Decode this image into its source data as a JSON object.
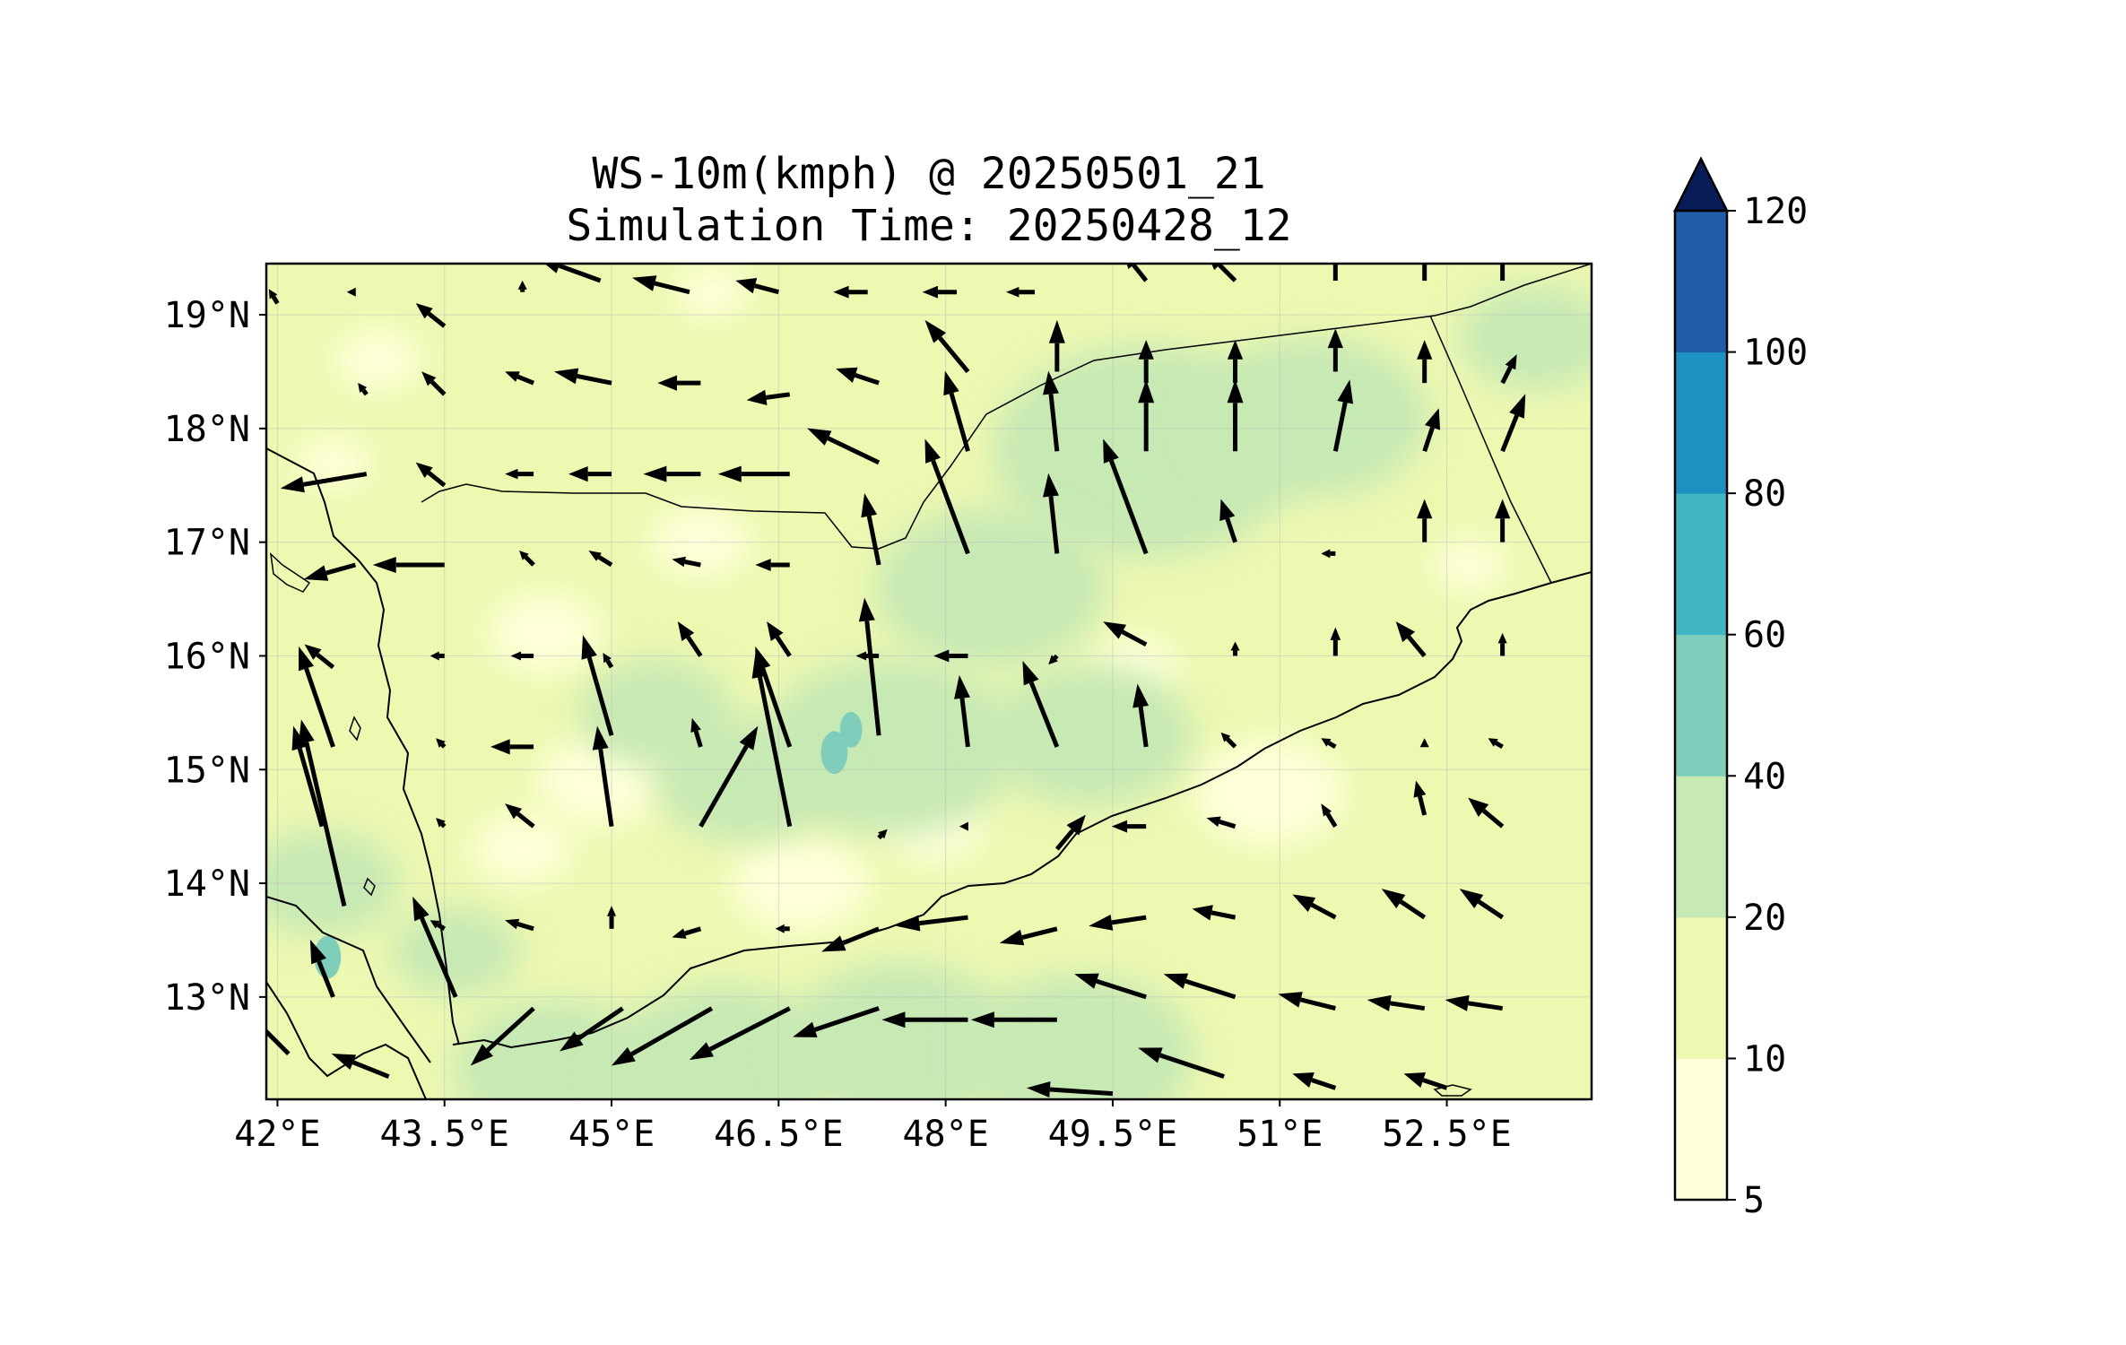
{
  "figure": {
    "title_line1": "WS-10m(kmph) @ 20250501_21",
    "title_line2": "Simulation Time: 20250428_12"
  },
  "map": {
    "lon_range": [
      41.9,
      53.8
    ],
    "lat_range": [
      12.1,
      19.45
    ],
    "lon_ticks": [
      {
        "value": 42.0,
        "label": "42°E"
      },
      {
        "value": 43.5,
        "label": "43.5°E"
      },
      {
        "value": 45.0,
        "label": "45°E"
      },
      {
        "value": 46.5,
        "label": "46.5°E"
      },
      {
        "value": 48.0,
        "label": "48°E"
      },
      {
        "value": 49.5,
        "label": "49.5°E"
      },
      {
        "value": 51.0,
        "label": "51°E"
      },
      {
        "value": 52.5,
        "label": "52.5°E"
      }
    ],
    "lat_ticks": [
      {
        "value": 19.0,
        "label": "19°N"
      },
      {
        "value": 18.0,
        "label": "18°N"
      },
      {
        "value": 17.0,
        "label": "17°N"
      },
      {
        "value": 16.0,
        "label": "16°N"
      },
      {
        "value": 15.0,
        "label": "15°N"
      },
      {
        "value": 14.0,
        "label": "14°N"
      },
      {
        "value": 13.0,
        "label": "13°N"
      }
    ],
    "gridlines": true,
    "vector_color": "#000000",
    "coast_color": "#000000"
  },
  "colorbar": {
    "levels": [
      5,
      10,
      20,
      40,
      60,
      80,
      100,
      120
    ],
    "tick_labels": [
      "5",
      "10",
      "20",
      "40",
      "60",
      "80",
      "100",
      "120"
    ],
    "colors": [
      "#ffffd9",
      "#edf8b1",
      "#c7e9b4",
      "#7fcdbb",
      "#41b6c4",
      "#1d91c0",
      "#225ea8",
      "#253494"
    ],
    "extend_color": "#081d58",
    "extend": "max",
    "orientation": "vertical"
  },
  "wind_field": {
    "units": "kmph",
    "base_color": "#edf8b1",
    "calm_areas": [
      {
        "lon": 42.9,
        "lat": 18.6,
        "r": 0.35
      },
      {
        "lon": 42.5,
        "lat": 17.7,
        "r": 0.3
      },
      {
        "lon": 44.4,
        "lat": 16.2,
        "r": 0.45
      },
      {
        "lon": 44.9,
        "lat": 14.9,
        "r": 0.5
      },
      {
        "lon": 44.2,
        "lat": 14.3,
        "r": 0.4
      },
      {
        "lon": 46.7,
        "lat": 14.0,
        "r": 0.55
      },
      {
        "lon": 47.9,
        "lat": 14.5,
        "r": 0.4
      },
      {
        "lon": 50.9,
        "lat": 14.8,
        "r": 0.6
      },
      {
        "lon": 49.7,
        "lat": 15.9,
        "r": 0.35
      },
      {
        "lon": 45.8,
        "lat": 17.0,
        "r": 0.4
      },
      {
        "lon": 52.7,
        "lat": 16.8,
        "r": 0.3
      },
      {
        "lon": 45.9,
        "lat": 19.2,
        "r": 0.3
      }
    ],
    "moderate_areas": [
      {
        "lon": 49.8,
        "lat": 17.8,
        "r": 1.2
      },
      {
        "lon": 51.3,
        "lat": 18.1,
        "r": 0.9
      },
      {
        "lon": 48.4,
        "lat": 16.6,
        "r": 0.9
      },
      {
        "lon": 47.5,
        "lat": 15.2,
        "r": 1.0
      },
      {
        "lon": 46.2,
        "lat": 14.9,
        "r": 0.7
      },
      {
        "lon": 45.4,
        "lat": 15.5,
        "r": 0.6
      },
      {
        "lon": 49.3,
        "lat": 15.3,
        "r": 0.8
      },
      {
        "lon": 42.4,
        "lat": 14.0,
        "r": 0.6
      },
      {
        "lon": 43.6,
        "lat": 13.4,
        "r": 0.5
      },
      {
        "lon": 44.5,
        "lat": 12.35,
        "r": 0.8
      },
      {
        "lon": 46.0,
        "lat": 12.4,
        "r": 0.9
      },
      {
        "lon": 47.6,
        "lat": 12.6,
        "r": 0.9
      },
      {
        "lon": 49.2,
        "lat": 12.5,
        "r": 0.9
      },
      {
        "lon": 53.3,
        "lat": 18.8,
        "r": 0.6
      }
    ],
    "strong_areas": [
      {
        "lon": 47.0,
        "lat": 15.15,
        "r": 0.12
      },
      {
        "lon": 47.15,
        "lat": 15.35,
        "r": 0.1
      },
      {
        "lon": 42.45,
        "lat": 13.35,
        "r": 0.12
      }
    ],
    "vectors": [
      {
        "lon": 42.0,
        "lat": 19.1,
        "u": -3,
        "v": 5
      },
      {
        "lon": 42.7,
        "lat": 19.2,
        "u": -3,
        "v": 0
      },
      {
        "lon": 43.5,
        "lat": 18.9,
        "u": -10,
        "v": 8
      },
      {
        "lon": 44.2,
        "lat": 19.2,
        "u": 0,
        "v": 4
      },
      {
        "lon": 44.9,
        "lat": 19.3,
        "u": -22,
        "v": 8
      },
      {
        "lon": 45.7,
        "lat": 19.2,
        "u": -20,
        "v": 5
      },
      {
        "lon": 46.5,
        "lat": 19.2,
        "u": -15,
        "v": 4
      },
      {
        "lon": 47.3,
        "lat": 19.2,
        "u": -12,
        "v": 0
      },
      {
        "lon": 48.1,
        "lat": 19.2,
        "u": -12,
        "v": 0
      },
      {
        "lon": 48.8,
        "lat": 19.2,
        "u": -10,
        "v": 0
      },
      {
        "lon": 49.8,
        "lat": 19.3,
        "u": -8,
        "v": 10
      },
      {
        "lon": 50.6,
        "lat": 19.3,
        "u": -10,
        "v": 10
      },
      {
        "lon": 51.5,
        "lat": 19.3,
        "u": 0,
        "v": 12
      },
      {
        "lon": 52.3,
        "lat": 19.3,
        "u": 0,
        "v": 12
      },
      {
        "lon": 53.0,
        "lat": 19.3,
        "u": 0,
        "v": 12
      },
      {
        "lon": 42.8,
        "lat": 18.3,
        "u": -3,
        "v": 4
      },
      {
        "lon": 43.5,
        "lat": 18.3,
        "u": -8,
        "v": 8
      },
      {
        "lon": 44.3,
        "lat": 18.4,
        "u": -10,
        "v": 4
      },
      {
        "lon": 45.0,
        "lat": 18.4,
        "u": -20,
        "v": 4
      },
      {
        "lon": 45.8,
        "lat": 18.4,
        "u": -15,
        "v": 0
      },
      {
        "lon": 46.6,
        "lat": 18.3,
        "u": -15,
        "v": -2
      },
      {
        "lon": 47.4,
        "lat": 18.4,
        "u": -15,
        "v": 5
      },
      {
        "lon": 48.2,
        "lat": 18.5,
        "u": -15,
        "v": 18
      },
      {
        "lon": 49.0,
        "lat": 18.5,
        "u": 0,
        "v": 18
      },
      {
        "lon": 49.8,
        "lat": 18.4,
        "u": 0,
        "v": 15
      },
      {
        "lon": 50.6,
        "lat": 18.4,
        "u": 0,
        "v": 15
      },
      {
        "lon": 51.5,
        "lat": 18.5,
        "u": 0,
        "v": 15
      },
      {
        "lon": 52.3,
        "lat": 18.4,
        "u": 0,
        "v": 15
      },
      {
        "lon": 53.0,
        "lat": 18.4,
        "u": 5,
        "v": 10
      },
      {
        "lon": 42.8,
        "lat": 17.6,
        "u": -30,
        "v": -5
      },
      {
        "lon": 43.5,
        "lat": 17.5,
        "u": -10,
        "v": 8
      },
      {
        "lon": 44.3,
        "lat": 17.6,
        "u": -10,
        "v": 0
      },
      {
        "lon": 45.0,
        "lat": 17.6,
        "u": -15,
        "v": 0
      },
      {
        "lon": 45.8,
        "lat": 17.6,
        "u": -20,
        "v": 0
      },
      {
        "lon": 46.6,
        "lat": 17.6,
        "u": -25,
        "v": 0
      },
      {
        "lon": 47.4,
        "lat": 17.7,
        "u": -25,
        "v": 12
      },
      {
        "lon": 48.2,
        "lat": 17.8,
        "u": -8,
        "v": 28
      },
      {
        "lon": 49.0,
        "lat": 17.8,
        "u": -3,
        "v": 28
      },
      {
        "lon": 49.8,
        "lat": 17.8,
        "u": 0,
        "v": 25
      },
      {
        "lon": 50.6,
        "lat": 17.8,
        "u": 0,
        "v": 25
      },
      {
        "lon": 51.5,
        "lat": 17.8,
        "u": 5,
        "v": 25
      },
      {
        "lon": 52.3,
        "lat": 17.8,
        "u": 5,
        "v": 15
      },
      {
        "lon": 53.0,
        "lat": 17.8,
        "u": 8,
        "v": 20
      },
      {
        "lon": 42.7,
        "lat": 16.8,
        "u": -18,
        "v": -5
      },
      {
        "lon": 43.5,
        "lat": 16.8,
        "u": -25,
        "v": 0
      },
      {
        "lon": 44.3,
        "lat": 16.8,
        "u": -5,
        "v": 5
      },
      {
        "lon": 45.0,
        "lat": 16.8,
        "u": -8,
        "v": 5
      },
      {
        "lon": 45.8,
        "lat": 16.8,
        "u": -10,
        "v": 2
      },
      {
        "lon": 46.6,
        "lat": 16.8,
        "u": -12,
        "v": 0
      },
      {
        "lon": 47.4,
        "lat": 16.8,
        "u": -5,
        "v": 25
      },
      {
        "lon": 48.2,
        "lat": 16.9,
        "u": -15,
        "v": 40
      },
      {
        "lon": 49.0,
        "lat": 16.9,
        "u": -3,
        "v": 28
      },
      {
        "lon": 49.8,
        "lat": 16.9,
        "u": -15,
        "v": 40
      },
      {
        "lon": 50.6,
        "lat": 17.0,
        "u": -5,
        "v": 15
      },
      {
        "lon": 51.5,
        "lat": 16.9,
        "u": -5,
        "v": 0
      },
      {
        "lon": 52.3,
        "lat": 17.0,
        "u": 0,
        "v": 15
      },
      {
        "lon": 53.0,
        "lat": 17.0,
        "u": 0,
        "v": 15
      },
      {
        "lon": 42.5,
        "lat": 15.9,
        "u": -10,
        "v": 8
      },
      {
        "lon": 43.5,
        "lat": 16.0,
        "u": -5,
        "v": 0
      },
      {
        "lon": 44.3,
        "lat": 16.0,
        "u": -8,
        "v": 0
      },
      {
        "lon": 45.0,
        "lat": 15.9,
        "u": -3,
        "v": 5
      },
      {
        "lon": 45.8,
        "lat": 16.0,
        "u": -8,
        "v": 12
      },
      {
        "lon": 46.6,
        "lat": 16.0,
        "u": -8,
        "v": 12
      },
      {
        "lon": 47.4,
        "lat": 16.0,
        "u": -8,
        "v": 0
      },
      {
        "lon": 48.2,
        "lat": 16.0,
        "u": -12,
        "v": 0
      },
      {
        "lon": 49.0,
        "lat": 16.0,
        "u": -3,
        "v": -3
      },
      {
        "lon": 49.8,
        "lat": 16.1,
        "u": -15,
        "v": 8
      },
      {
        "lon": 50.6,
        "lat": 16.0,
        "u": 0,
        "v": 5
      },
      {
        "lon": 51.5,
        "lat": 16.0,
        "u": 0,
        "v": 10
      },
      {
        "lon": 52.3,
        "lat": 16.0,
        "u": -10,
        "v": 12
      },
      {
        "lon": 53.0,
        "lat": 16.0,
        "u": 0,
        "v": 8
      },
      {
        "lon": 42.5,
        "lat": 15.2,
        "u": -12,
        "v": 35
      },
      {
        "lon": 43.5,
        "lat": 15.2,
        "u": -3,
        "v": 3
      },
      {
        "lon": 44.3,
        "lat": 15.2,
        "u": -15,
        "v": 0
      },
      {
        "lon": 45.0,
        "lat": 15.3,
        "u": -10,
        "v": 35
      },
      {
        "lon": 45.8,
        "lat": 15.2,
        "u": -3,
        "v": 10
      },
      {
        "lon": 46.6,
        "lat": 15.2,
        "u": -12,
        "v": 35
      },
      {
        "lon": 47.4,
        "lat": 15.3,
        "u": -5,
        "v": 48
      },
      {
        "lon": 48.2,
        "lat": 15.2,
        "u": -3,
        "v": 25
      },
      {
        "lon": 49.0,
        "lat": 15.2,
        "u": -12,
        "v": 30
      },
      {
        "lon": 49.8,
        "lat": 15.2,
        "u": -3,
        "v": 22
      },
      {
        "lon": 50.6,
        "lat": 15.2,
        "u": -5,
        "v": 5
      },
      {
        "lon": 51.5,
        "lat": 15.2,
        "u": -5,
        "v": 3
      },
      {
        "lon": 52.3,
        "lat": 15.2,
        "u": 0,
        "v": 3
      },
      {
        "lon": 53.0,
        "lat": 15.2,
        "u": -5,
        "v": 3
      },
      {
        "lon": 42.4,
        "lat": 14.5,
        "u": -10,
        "v": 35
      },
      {
        "lon": 43.5,
        "lat": 14.5,
        "u": -3,
        "v": 3
      },
      {
        "lon": 44.3,
        "lat": 14.5,
        "u": -10,
        "v": 8
      },
      {
        "lon": 45.0,
        "lat": 14.5,
        "u": -5,
        "v": 35
      },
      {
        "lon": 45.8,
        "lat": 14.5,
        "u": 20,
        "v": 35
      },
      {
        "lon": 46.6,
        "lat": 14.5,
        "u": -12,
        "v": 60
      },
      {
        "lon": 47.4,
        "lat": 14.4,
        "u": 3,
        "v": 3
      },
      {
        "lon": 48.2,
        "lat": 14.5,
        "u": -3,
        "v": 0
      },
      {
        "lon": 49.0,
        "lat": 14.3,
        "u": 10,
        "v": 12
      },
      {
        "lon": 49.8,
        "lat": 14.5,
        "u": -12,
        "v": 0
      },
      {
        "lon": 50.6,
        "lat": 14.5,
        "u": -10,
        "v": 3
      },
      {
        "lon": 51.5,
        "lat": 14.5,
        "u": -5,
        "v": 8
      },
      {
        "lon": 52.3,
        "lat": 14.6,
        "u": -3,
        "v": 12
      },
      {
        "lon": 53.0,
        "lat": 14.5,
        "u": -12,
        "v": 10
      },
      {
        "lon": 42.6,
        "lat": 13.8,
        "u": -15,
        "v": 65
      },
      {
        "lon": 43.5,
        "lat": 13.6,
        "u": -5,
        "v": 3
      },
      {
        "lon": 44.3,
        "lat": 13.6,
        "u": -10,
        "v": 3
      },
      {
        "lon": 45.0,
        "lat": 13.6,
        "u": 0,
        "v": 8
      },
      {
        "lon": 45.8,
        "lat": 13.6,
        "u": -10,
        "v": -3
      },
      {
        "lon": 46.6,
        "lat": 13.6,
        "u": -5,
        "v": 0
      },
      {
        "lon": 47.4,
        "lat": 13.6,
        "u": -20,
        "v": -8
      },
      {
        "lon": 48.2,
        "lat": 13.7,
        "u": -25,
        "v": -3
      },
      {
        "lon": 49.0,
        "lat": 13.6,
        "u": -20,
        "v": -5
      },
      {
        "lon": 49.8,
        "lat": 13.7,
        "u": -20,
        "v": -3
      },
      {
        "lon": 50.6,
        "lat": 13.7,
        "u": -15,
        "v": 3
      },
      {
        "lon": 51.5,
        "lat": 13.7,
        "u": -15,
        "v": 8
      },
      {
        "lon": 52.3,
        "lat": 13.7,
        "u": -15,
        "v": 10
      },
      {
        "lon": 53.0,
        "lat": 13.7,
        "u": -15,
        "v": 10
      },
      {
        "lon": 42.5,
        "lat": 13.0,
        "u": -8,
        "v": 20
      },
      {
        "lon": 43.6,
        "lat": 13.0,
        "u": -15,
        "v": 35
      },
      {
        "lon": 44.3,
        "lat": 12.9,
        "u": -22,
        "v": -20
      },
      {
        "lon": 45.1,
        "lat": 12.9,
        "u": -22,
        "v": -15
      },
      {
        "lon": 45.9,
        "lat": 12.9,
        "u": -35,
        "v": -20
      },
      {
        "lon": 46.6,
        "lat": 12.9,
        "u": -35,
        "v": -18
      },
      {
        "lon": 47.4,
        "lat": 12.9,
        "u": -30,
        "v": -10
      },
      {
        "lon": 48.2,
        "lat": 12.8,
        "u": -30,
        "v": 0
      },
      {
        "lon": 49.0,
        "lat": 12.8,
        "u": -30,
        "v": 0
      },
      {
        "lon": 49.8,
        "lat": 13.0,
        "u": -25,
        "v": 8
      },
      {
        "lon": 50.6,
        "lat": 13.0,
        "u": -25,
        "v": 8
      },
      {
        "lon": 51.5,
        "lat": 12.9,
        "u": -20,
        "v": 5
      },
      {
        "lon": 52.3,
        "lat": 12.9,
        "u": -20,
        "v": 3
      },
      {
        "lon": 53.0,
        "lat": 12.9,
        "u": -20,
        "v": 3
      },
      {
        "lon": 42.1,
        "lat": 12.5,
        "u": -30,
        "v": 30
      },
      {
        "lon": 43.0,
        "lat": 12.3,
        "u": -20,
        "v": 8
      },
      {
        "lon": 49.5,
        "lat": 12.15,
        "u": -30,
        "v": 2
      },
      {
        "lon": 50.5,
        "lat": 12.3,
        "u": -30,
        "v": 10
      },
      {
        "lon": 51.5,
        "lat": 12.2,
        "u": -15,
        "v": 5
      },
      {
        "lon": 52.5,
        "lat": 12.2,
        "u": -15,
        "v": 5
      }
    ]
  }
}
